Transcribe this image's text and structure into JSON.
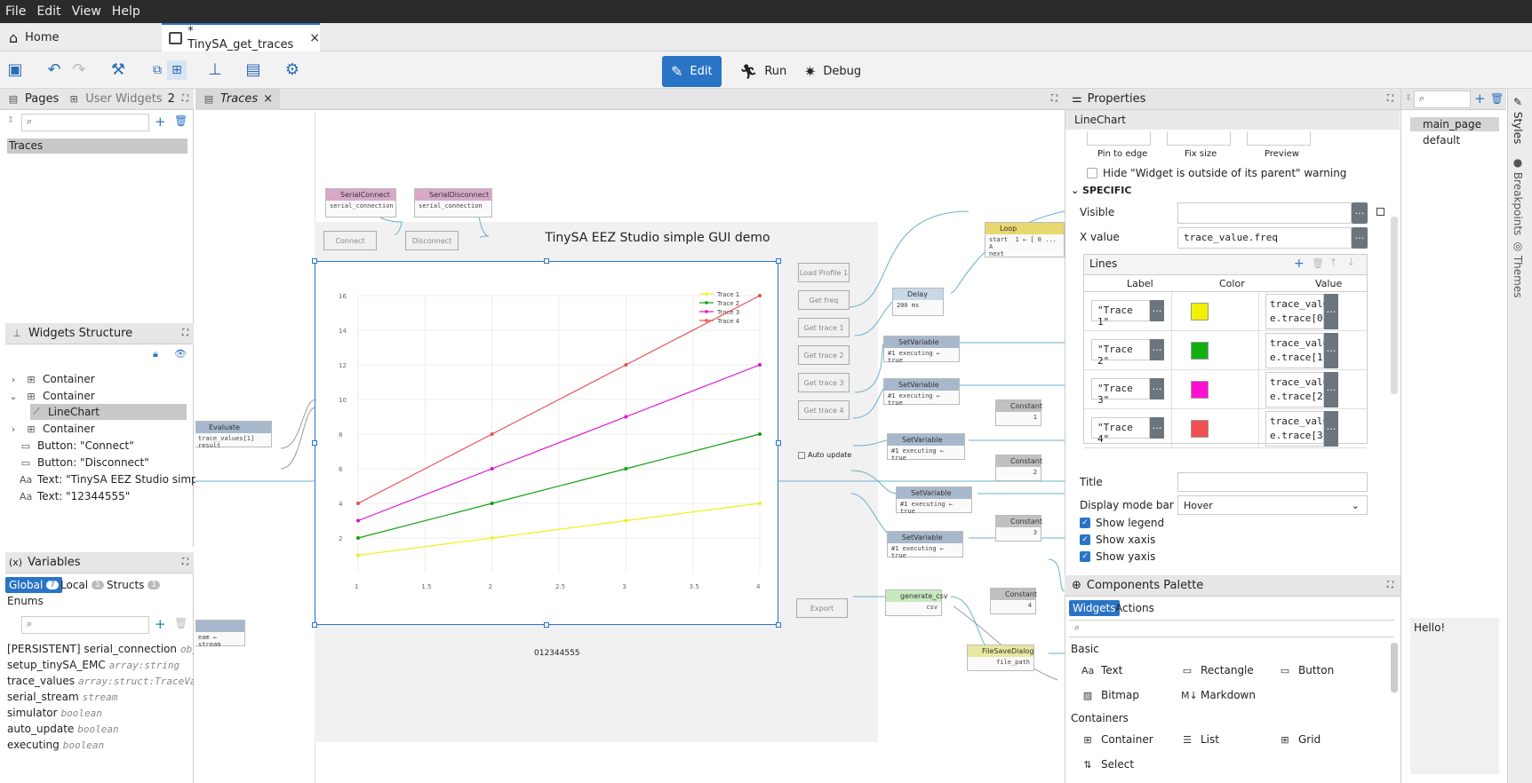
{
  "menu": [
    "File",
    "Edit",
    "View",
    "Help"
  ],
  "tabs": {
    "home": "Home",
    "project": "* TinySA_get_traces"
  },
  "modes": {
    "edit": "Edit",
    "run": "Run",
    "debug": "Debug"
  },
  "left": {
    "pages_tab": "Pages",
    "user_widgets_tab": "User Widgets",
    "badge": "2",
    "pages": [
      "Traces"
    ],
    "widgets_structure_title": "Widgets Structure",
    "structure": [
      "Container",
      "Container",
      "LineChart",
      "Container",
      "Button: \"Connect\"",
      "Button: \"Disconnect\"",
      "Text: \"TinySA EEZ Studio simp...",
      "Text: \"12344555\""
    ],
    "variables_title": "Variables",
    "var_tabs": {
      "global": "Global",
      "global_count": "7",
      "local": "Local",
      "local_count": "1",
      "structs": "Structs",
      "structs_count": "1",
      "enums": "Enums"
    },
    "variables": [
      {
        "name": "[PERSISTENT] serial_connection",
        "type": "object"
      },
      {
        "name": "setup_tinySA_EMC",
        "type": "array:string"
      },
      {
        "name": "trace_values",
        "type": "array:struct:TraceVa"
      },
      {
        "name": "serial_stream",
        "type": "stream"
      },
      {
        "name": "simulator",
        "type": "boolean"
      },
      {
        "name": "auto_update",
        "type": "boolean"
      },
      {
        "name": "executing",
        "type": "boolean"
      }
    ]
  },
  "editor": {
    "tab": "Traces",
    "page_title": "TinySA EEZ Studio simple GUI demo",
    "bottom_text": "012344555",
    "buttons": {
      "connect": "Connect",
      "disconnect": "Disconnect",
      "load_profile": "Load Profile 1",
      "get_freq": "Get freq",
      "get_trace1": "Get trace 1",
      "get_trace2": "Get trace 2",
      "get_trace3": "Get trace 3",
      "get_trace4": "Get trace 4",
      "export": "Export",
      "auto_update": "Auto update"
    },
    "nodes": {
      "serial_connect": "SerialConnect",
      "serial_disconnect": "SerialDisconnect",
      "serial_connection": "serial_connection",
      "loop": "Loop",
      "loop_start": "start",
      "loop_next": "next",
      "loop_expr": "1 ← [ 0 ... A",
      "delay": "Delay",
      "delay_val": "200 ms",
      "set_variable": "SetVariable",
      "set_expr": "#1 executing ← true",
      "constant": "Constant",
      "c1": "1",
      "c2": "2",
      "c3": "3",
      "c4": "4",
      "evaluate": "Evaluate",
      "eval_expr": "trace_values[1]",
      "eval_out": "result",
      "generate_csv": "generate_csv",
      "csv": "csv",
      "file_save": "FileSaveDialog",
      "file_path": "file_path",
      "stream_a": "eam",
      "stream_b": "stream"
    }
  },
  "chart_data": {
    "type": "line",
    "x": [
      1,
      2,
      3,
      4
    ],
    "xticks": [
      "1",
      "1.5",
      "2",
      "2.5",
      "3",
      "3.5",
      "4"
    ],
    "yticks": [
      "2",
      "4",
      "6",
      "8",
      "10",
      "12",
      "14",
      "16"
    ],
    "xlim": [
      1,
      4
    ],
    "ylim": [
      0,
      16
    ],
    "legend_position": "top-right",
    "series": [
      {
        "name": "Trace 1",
        "color": "#f0f020",
        "values": [
          1,
          2,
          3,
          4
        ]
      },
      {
        "name": "Trace 2",
        "color": "#10a010",
        "values": [
          2,
          4,
          6,
          8
        ]
      },
      {
        "name": "Trace 3",
        "color": "#e010d0",
        "values": [
          3,
          6,
          9,
          12
        ]
      },
      {
        "name": "Trace 4",
        "color": "#e85050",
        "values": [
          4,
          8,
          12,
          16
        ]
      }
    ]
  },
  "properties": {
    "title": "Properties",
    "widget": "LineChart",
    "pin_to_edge": "Pin to edge",
    "fix_size": "Fix size",
    "preview": "Preview",
    "hide_warning": "Hide \"Widget is outside of its parent\" warning",
    "section": "SPECIFIC",
    "visible": "Visible",
    "x_value_label": "X value",
    "x_value": "trace_value.freq",
    "lines": "Lines",
    "col_label": "Label",
    "col_color": "Color",
    "col_value": "Value",
    "rows": [
      {
        "label": "\"Trace 1\"",
        "color": "#f0f000",
        "v1": "trace_valu",
        "v2": "e.trace[0]"
      },
      {
        "label": "\"Trace 2\"",
        "color": "#10b010",
        "v1": "trace_valu",
        "v2": "e.trace[1]"
      },
      {
        "label": "\"Trace 3\"",
        "color": "#ff10d0",
        "v1": "trace_valu",
        "v2": "e.trace[2]"
      },
      {
        "label": "\"Trace 4\"",
        "color": "#f05050",
        "v1": "trace_valu",
        "v2": "e.trace[3]"
      }
    ],
    "title_label": "Title",
    "display_mode_bar": "Display mode bar",
    "display_mode_value": "Hover",
    "show_legend": "Show legend",
    "show_xaxis": "Show xaxis",
    "show_yaxis": "Show yaxis"
  },
  "palette": {
    "title": "Components Palette",
    "tab_widgets": "Widgets",
    "tab_actions": "Actions",
    "basic": "Basic",
    "containers": "Containers",
    "basic_items": [
      "Text",
      "Rectangle",
      "Button",
      "Bitmap",
      "Markdown"
    ],
    "container_items": [
      "Container",
      "List",
      "Grid",
      "Select"
    ]
  },
  "styles": {
    "items": [
      "main_page",
      "default"
    ],
    "preview_text": "Hello!"
  },
  "vertical_tabs": [
    "Styles",
    "Breakpoints",
    "Themes"
  ]
}
